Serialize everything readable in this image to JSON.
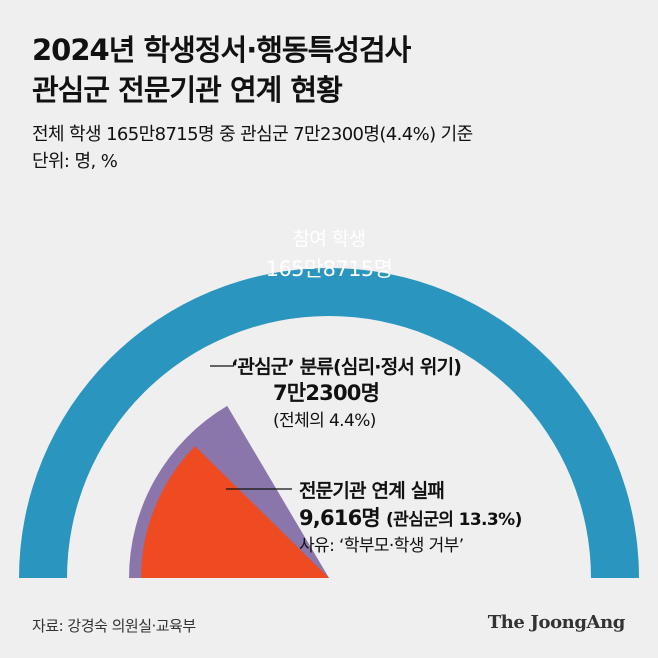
{
  "header": {
    "title_line1": "2024년 학생정서·행동특성검사",
    "title_line2": "관심군 전문기관 연계 현황",
    "subtitle": "전체 학생 165만8715명 중 관심군 7만2300명(4.4%) 기준",
    "unit": "단위: 명, %"
  },
  "colors": {
    "total": "#2a96bf",
    "concern": "#8a76aa",
    "failure": "#ef4b22",
    "background": "#efefef"
  },
  "chart_data": {
    "type": "pie",
    "layout": "semicircle-nested",
    "segments": [
      {
        "name": "참여 학생",
        "value": 1658715,
        "value_label": "165만8715명",
        "color": "#2a96bf"
      },
      {
        "name": "‘관심군’ 분류(심리·정서 위기)",
        "value": 72300,
        "value_label": "7만2300명",
        "percent": 4.4,
        "percent_label": "(전체의 4.4%)",
        "color": "#8a76aa"
      },
      {
        "name": "전문기관 연계 실패",
        "value": 9616,
        "value_label": "9,616명",
        "percent": 13.3,
        "percent_label": "(관심군의 13.3%)",
        "reason_label": "사유: ‘학부모·학생 거부’",
        "color": "#ef4b22"
      }
    ]
  },
  "labels": {
    "total_name": "참여 학생",
    "total_value": "165만8715명",
    "concern_name": "‘관심군’ 분류(심리·정서 위기)",
    "concern_value": "7만2300명",
    "concern_pct": "(전체의 4.4%)",
    "failure_name": "전문기관 연계 실패",
    "failure_value": "9,616명",
    "failure_pct": "(관심군의 13.3%)",
    "failure_reason": "사유: ‘학부모·학생 거부’"
  },
  "footer": {
    "source": "자료: 강경숙 의원실·교육부",
    "brand": "The JoongAng"
  }
}
